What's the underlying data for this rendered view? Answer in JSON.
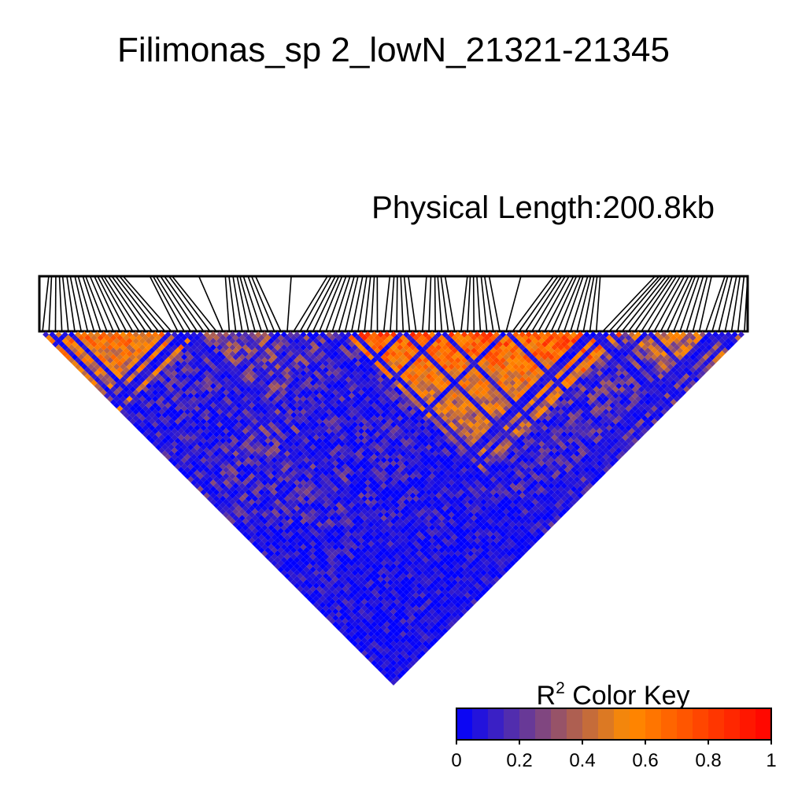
{
  "chart_data": {
    "type": "heatmap",
    "title": "Filimonas_sp 2_lowN_21321-21345",
    "subtitle": "Physical Length:200.8kb",
    "color_key": {
      "label_base": "R",
      "label_sup": "2",
      "label_rest": " Color Key",
      "range": [
        0,
        1
      ],
      "ticks": [
        "0",
        "0.2",
        "0.4",
        "0.6",
        "0.8",
        "1"
      ],
      "low_color": "#0000ff",
      "mid_color": "#ff8c00",
      "high_color": "#ff0000"
    },
    "blocks": [
      {
        "region": "left cluster near top",
        "r2_approx": 0.65
      },
      {
        "region": "right-centre block near top",
        "r2_approx": 0.75
      },
      {
        "region": "centre band, deeper rows",
        "r2_approx": 0.3
      },
      {
        "region": "bottom apex",
        "r2_approx": 0.05
      }
    ]
  }
}
